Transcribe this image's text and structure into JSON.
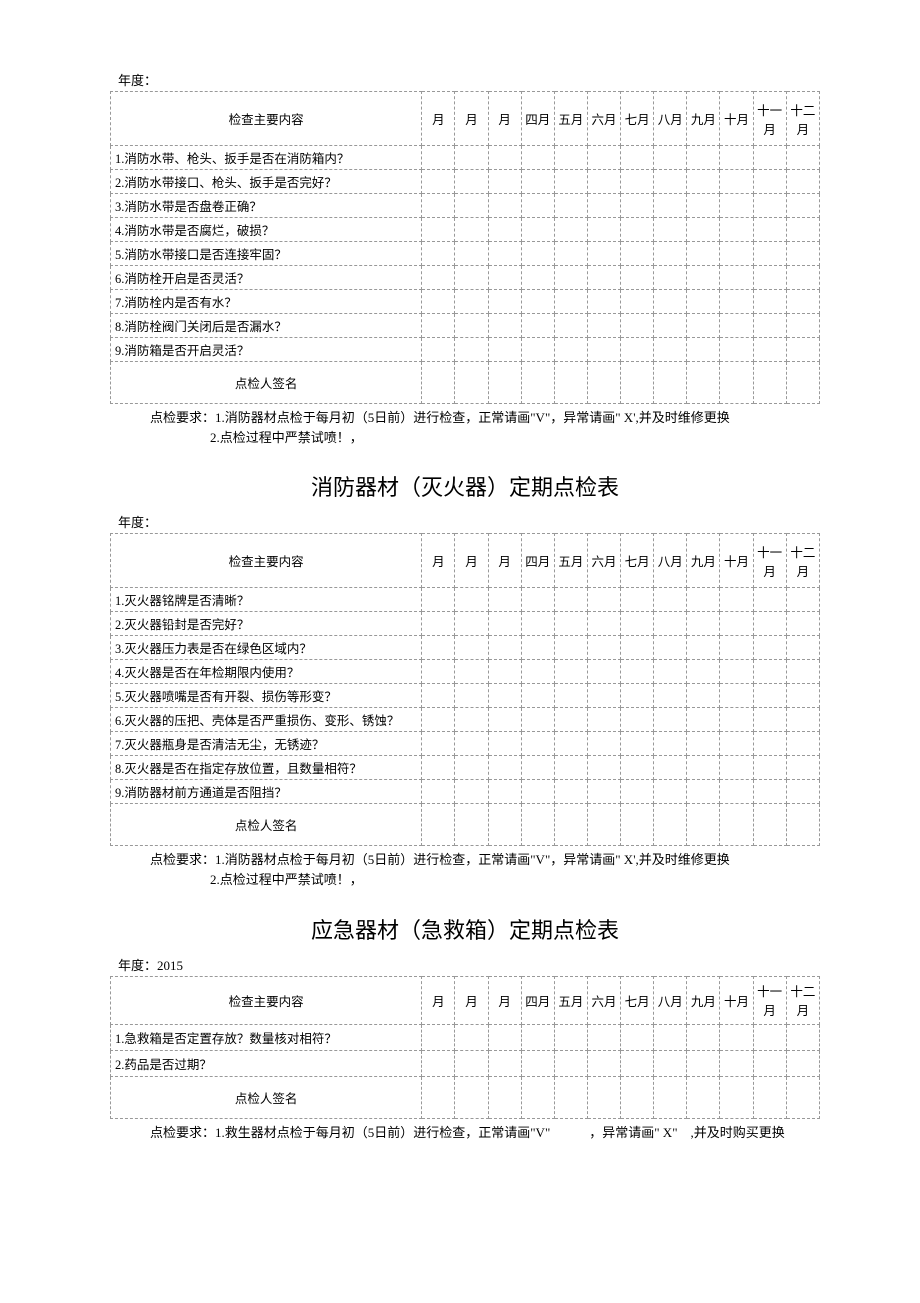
{
  "months": [
    "月",
    "月",
    "月",
    "四月",
    "五月",
    "六月",
    "七月",
    "八月",
    "九月",
    "十月",
    "十一月",
    "十二月"
  ],
  "table1": {
    "year_label": "年度：",
    "header_main": "检查主要内容",
    "rows": [
      "1.消防水带、枪头、扳手是否在消防箱内？",
      "2.消防水带接口、枪头、扳手是否完好？",
      "3.消防水带是否盘卷正确？",
      "4.消防水带是否腐烂，破损？",
      "5.消防水带接口是否连接牢固？",
      "6.消防栓开启是否灵活？",
      "7.消防栓内是否有水？",
      "8.消防栓阀门关闭后是否漏水？",
      "9.消防箱是否开启灵活？"
    ],
    "sign_label": "点检人签名",
    "note1": "点检要求：1.消防器材点检于每月初（5日前）进行检查，正常请画\"V\"，异常请画\" X',并及时维修更换",
    "note2": "2.点检过程中严禁试喷！，"
  },
  "table2": {
    "title": "消防器材（灭火器）定期点检表",
    "year_label": "年度：",
    "header_main": "检查主要内容",
    "rows": [
      "1.灭火器铭牌是否清晰？",
      "2.灭火器铅封是否完好？",
      "3.灭火器压力表是否在绿色区域内？",
      "4.灭火器是否在年检期限内使用？",
      "5.灭火器喷嘴是否有开裂、损伤等形变？",
      "6.灭火器的压把、壳体是否严重损伤、变形、锈蚀？",
      "7.灭火器瓶身是否清洁无尘，无锈迹？",
      "8.灭火器是否在指定存放位置，且数量相符？",
      "9.消防器材前方通道是否阻挡？"
    ],
    "sign_label": "点检人签名",
    "note1": "点检要求：1.消防器材点检于每月初（5日前）进行检查，正常请画\"V\"，异常请画\" X',并及时维修更换",
    "note2": "2.点检过程中严禁试喷！，"
  },
  "table3": {
    "title": "应急器材（急救箱）定期点检表",
    "year_label": "年度：2015",
    "header_main": "检查主要内容",
    "rows": [
      "1.急救箱是否定置存放？数量核对相符？",
      "2.药品是否过期？"
    ],
    "sign_label": "点检人签名",
    "note1": "点检要求：1.救生器材点检于每月初（5日前）进行检查，正常请画\"V\"   ，异常请画\" X\" ,并及时购买更换"
  }
}
